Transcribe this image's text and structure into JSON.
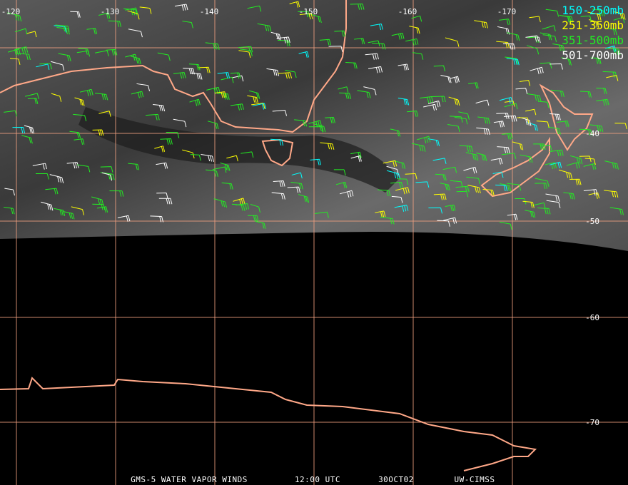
{
  "grid": {
    "longitudes": [
      "-120",
      "-130",
      "-140",
      "-150",
      "-160",
      "-170"
    ],
    "latitudes": [
      "-40",
      "-50",
      "-60",
      "-70"
    ]
  },
  "legend": [
    {
      "label": "150-250mb",
      "color": "#00ffff"
    },
    {
      "label": "251-350mb",
      "color": "#ffff00"
    },
    {
      "label": "351-500mb",
      "color": "#22ee22"
    },
    {
      "label": "501-700mb",
      "color": "#ffffff"
    }
  ],
  "footer": [
    "GMS-5 WATER VAPOR WINDS",
    "12:00 UTC",
    "30OCT02",
    "UW-CIMSS"
  ]
}
